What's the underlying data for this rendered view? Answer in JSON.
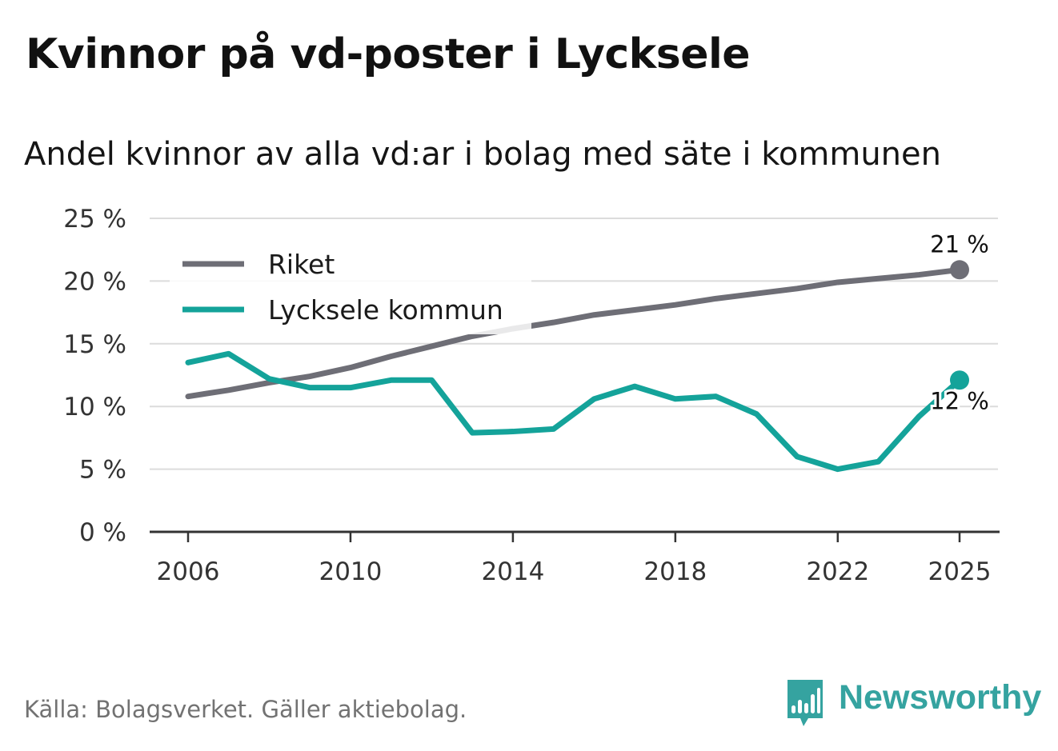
{
  "title": "Kvinnor på vd-poster i Lycksele",
  "subtitle": "Andel kvinnor av alla vd:ar i bolag med säte i kommunen",
  "source": "Källa: Bolagsverket. Gäller aktiebolag.",
  "brand": "Newsworthy",
  "colors": {
    "riket": "#6e6e76",
    "lycksele": "#14a39a",
    "grid": "#dcdcdc",
    "axis": "#333333",
    "brand": "#35a3a0"
  },
  "chart_data": {
    "type": "line",
    "x": [
      2006,
      2007,
      2008,
      2009,
      2010,
      2011,
      2012,
      2013,
      2014,
      2015,
      2016,
      2017,
      2018,
      2019,
      2020,
      2021,
      2022,
      2023,
      2024,
      2025
    ],
    "series": [
      {
        "name": "Riket",
        "values": [
          10.8,
          11.3,
          11.9,
          12.4,
          13.1,
          14.0,
          14.8,
          15.6,
          16.2,
          16.7,
          17.3,
          17.7,
          18.1,
          18.6,
          19.0,
          19.4,
          19.9,
          20.2,
          20.5,
          20.9
        ],
        "end_label": "21 %"
      },
      {
        "name": "Lycksele kommun",
        "values": [
          13.5,
          14.2,
          12.2,
          11.5,
          11.5,
          12.1,
          12.1,
          7.9,
          8.0,
          8.2,
          10.6,
          11.6,
          10.6,
          10.8,
          9.4,
          6.0,
          5.0,
          5.6,
          9.2,
          12.1
        ],
        "end_label": "12 %"
      }
    ],
    "y_ticks": [
      0,
      5,
      10,
      15,
      20,
      25
    ],
    "y_tick_labels": [
      "0 %",
      "5 %",
      "10 %",
      "15 %",
      "20 %",
      "25 %"
    ],
    "x_ticks": [
      2006,
      2010,
      2014,
      2018,
      2022,
      2025
    ],
    "x_tick_labels": [
      "2006",
      "2010",
      "2014",
      "2018",
      "2022",
      "2025"
    ],
    "ylim": [
      0,
      25
    ],
    "xlabel": "",
    "ylabel": "",
    "legend": {
      "position": "top-left",
      "entries": [
        "Riket",
        "Lycksele kommun"
      ]
    }
  }
}
